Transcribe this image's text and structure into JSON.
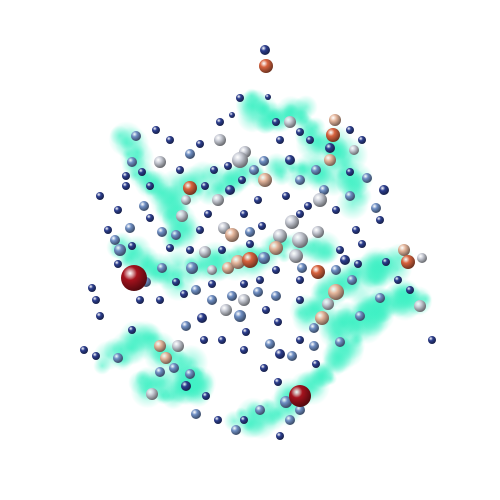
{
  "scene": {
    "background": "#ffffff",
    "gas_color": "#3ef0c4",
    "colormap": [
      "#2c3e8f",
      "#6f8fc4",
      "#c9ccd6",
      "#e6b79d",
      "#d9643f",
      "#a5121d"
    ]
  }
}
